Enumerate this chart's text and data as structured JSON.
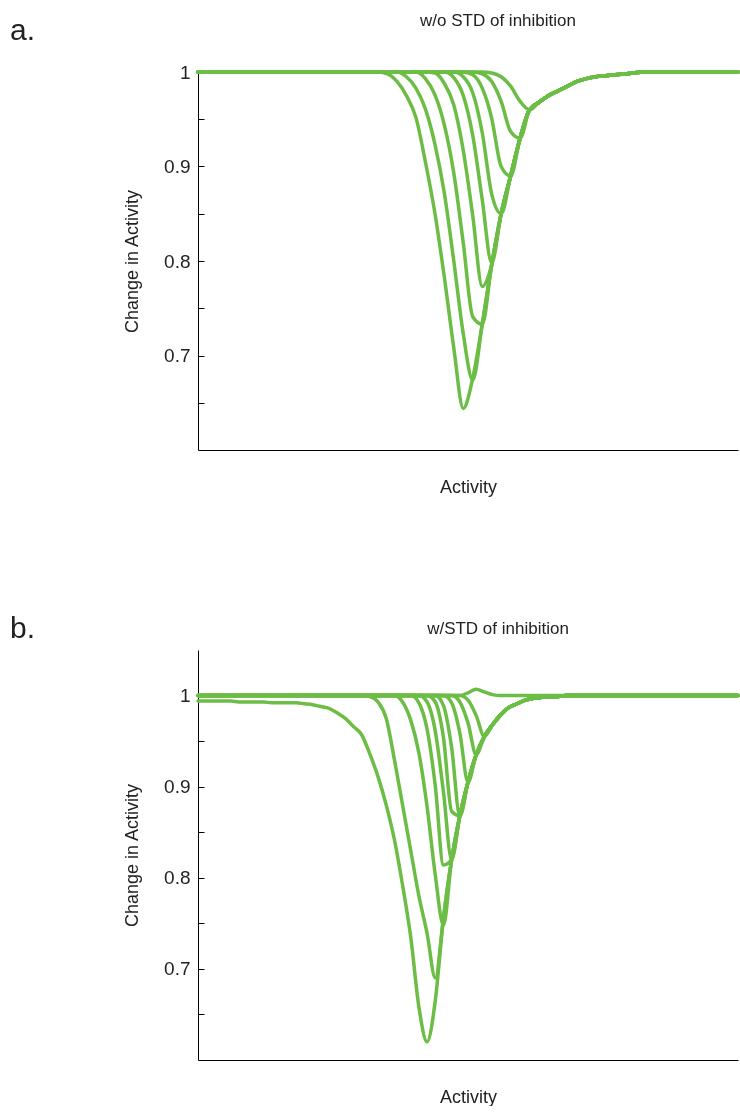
{
  "chart_data": [
    {
      "type": "line",
      "title": "w/o STD of inhibition",
      "xlabel": "Activity",
      "ylabel": "Change in Activity",
      "annotations": [
        "a."
      ],
      "tick_labels": "y",
      "ylim": [
        0.6,
        1
      ],
      "yticks": [
        {
          "value": 0.65,
          "label": null
        },
        0.7,
        {
          "value": 0.75,
          "label": null
        },
        0.8,
        {
          "value": 0.85,
          "label": null
        },
        0.9,
        {
          "value": 0.95,
          "label": null
        },
        1
      ],
      "categories": [
        null,
        null,
        null,
        null,
        null,
        null,
        null,
        null,
        null,
        null,
        null,
        null,
        null,
        null,
        null,
        null,
        null,
        null,
        null,
        null,
        null,
        null,
        null,
        null,
        null,
        null,
        null,
        null,
        null,
        null,
        null,
        null,
        null,
        null,
        null,
        null,
        null,
        null,
        null,
        null,
        null,
        null,
        null,
        null,
        null,
        null,
        null,
        null,
        null,
        null,
        null,
        null,
        null,
        null,
        null,
        null,
        null,
        null
      ],
      "series": [
        {
          "color": "#6cbd45",
          "values": [
            1,
            1,
            1,
            1,
            1,
            1,
            1,
            1,
            1,
            1,
            1,
            1,
            1,
            1,
            1,
            1,
            1,
            1,
            1,
            1,
            0.998,
            0.99,
            0.975,
            0.952,
            0.905,
            0.851,
            0.783,
            0.708,
            0.644,
            0.676,
            0.733,
            0.796,
            0.85,
            0.89,
            0.93,
            0.96,
            0.968,
            0.975,
            0.98,
            0.985,
            0.99,
            0.993,
            0.995,
            0.996,
            0.997,
            0.998,
            0.999,
            1,
            1,
            1,
            1,
            1,
            1,
            1,
            1,
            1,
            1,
            1
          ]
        },
        {
          "color": "#6cbd45",
          "values": [
            1,
            1,
            1,
            1,
            1,
            1,
            1,
            1,
            1,
            1,
            1,
            1,
            1,
            1,
            1,
            1,
            1,
            1,
            1,
            1,
            1,
            1,
            0.995,
            0.983,
            0.961,
            0.924,
            0.872,
            0.8,
            0.723,
            0.674,
            0.733,
            0.796,
            0.85,
            0.89,
            0.93,
            0.96,
            0.968,
            0.975,
            0.98,
            0.985,
            0.99,
            0.993,
            0.995,
            0.996,
            0.997,
            0.998,
            0.999,
            1,
            1,
            1,
            1,
            1,
            1,
            1,
            1,
            1,
            1,
            1
          ]
        },
        {
          "color": "#6cbd45",
          "values": [
            1,
            1,
            1,
            1,
            1,
            1,
            1,
            1,
            1,
            1,
            1,
            1,
            1,
            1,
            1,
            1,
            1,
            1,
            1,
            1,
            1,
            1,
            1,
            1,
            0.993,
            0.976,
            0.944,
            0.893,
            0.819,
            0.741,
            0.733,
            0.796,
            0.85,
            0.89,
            0.93,
            0.96,
            0.968,
            0.975,
            0.98,
            0.985,
            0.99,
            0.993,
            0.995,
            0.996,
            0.997,
            0.998,
            0.999,
            1,
            1,
            1,
            1,
            1,
            1,
            1,
            1,
            1,
            1,
            1
          ]
        },
        {
          "color": "#6cbd45",
          "values": [
            1,
            1,
            1,
            1,
            1,
            1,
            1,
            1,
            1,
            1,
            1,
            1,
            1,
            1,
            1,
            1,
            1,
            1,
            1,
            1,
            1,
            1,
            1,
            1,
            1,
            0.999,
            0.988,
            0.965,
            0.917,
            0.848,
            0.773,
            0.796,
            0.85,
            0.89,
            0.93,
            0.96,
            0.968,
            0.975,
            0.98,
            0.985,
            0.99,
            0.993,
            0.995,
            0.996,
            0.997,
            0.998,
            0.999,
            1,
            1,
            1,
            1,
            1,
            1,
            1,
            1,
            1,
            1,
            1
          ]
        },
        {
          "color": "#6cbd45",
          "values": [
            1,
            1,
            1,
            1,
            1,
            1,
            1,
            1,
            1,
            1,
            1,
            1,
            1,
            1,
            1,
            1,
            1,
            1,
            1,
            1,
            1,
            1,
            1,
            1,
            1,
            1,
            1,
            0.994,
            0.975,
            0.933,
            0.865,
            0.798,
            0.85,
            0.89,
            0.93,
            0.96,
            0.968,
            0.975,
            0.98,
            0.985,
            0.99,
            0.993,
            0.995,
            0.996,
            0.997,
            0.998,
            0.999,
            1,
            1,
            1,
            1,
            1,
            1,
            1,
            1,
            1,
            1,
            1
          ]
        },
        {
          "color": "#6cbd45",
          "values": [
            1,
            1,
            1,
            1,
            1,
            1,
            1,
            1,
            1,
            1,
            1,
            1,
            1,
            1,
            1,
            1,
            1,
            1,
            1,
            1,
            1,
            1,
            1,
            1,
            1,
            1,
            1,
            1,
            0.995,
            0.978,
            0.936,
            0.871,
            0.85,
            0.89,
            0.93,
            0.96,
            0.968,
            0.975,
            0.98,
            0.985,
            0.99,
            0.993,
            0.995,
            0.996,
            0.997,
            0.998,
            0.999,
            1,
            1,
            1,
            1,
            1,
            1,
            1,
            1,
            1,
            1,
            1
          ]
        },
        {
          "color": "#6cbd45",
          "values": [
            1,
            1,
            1,
            1,
            1,
            1,
            1,
            1,
            1,
            1,
            1,
            1,
            1,
            1,
            1,
            1,
            1,
            1,
            1,
            1,
            1,
            1,
            1,
            1,
            1,
            1,
            1,
            1,
            1,
            0.997,
            0.983,
            0.951,
            0.9,
            0.89,
            0.93,
            0.96,
            0.968,
            0.975,
            0.98,
            0.985,
            0.99,
            0.993,
            0.995,
            0.996,
            0.997,
            0.998,
            0.999,
            1,
            1,
            1,
            1,
            1,
            1,
            1,
            1,
            1,
            1,
            1
          ]
        },
        {
          "color": "#6cbd45",
          "values": [
            1,
            1,
            1,
            1,
            1,
            1,
            1,
            1,
            1,
            1,
            1,
            1,
            1,
            1,
            1,
            1,
            1,
            1,
            1,
            1,
            1,
            1,
            1,
            1,
            1,
            1,
            1,
            1,
            1,
            1,
            0.998,
            0.99,
            0.969,
            0.937,
            0.93,
            0.96,
            0.968,
            0.975,
            0.98,
            0.985,
            0.99,
            0.993,
            0.995,
            0.996,
            0.997,
            0.998,
            0.999,
            1,
            1,
            1,
            1,
            1,
            1,
            1,
            1,
            1,
            1,
            1
          ]
        },
        {
          "color": "#6cbd45",
          "values": [
            1,
            1,
            1,
            1,
            1,
            1,
            1,
            1,
            1,
            1,
            1,
            1,
            1,
            1,
            1,
            1,
            1,
            1,
            1,
            1,
            1,
            1,
            1,
            1,
            1,
            1,
            1,
            1,
            1,
            1,
            1,
            0.999,
            0.995,
            0.985,
            0.969,
            0.96,
            0.968,
            0.975,
            0.98,
            0.985,
            0.99,
            0.993,
            0.995,
            0.996,
            0.997,
            0.998,
            0.999,
            1,
            1,
            1,
            1,
            1,
            1,
            1,
            1,
            1,
            1,
            1
          ]
        }
      ]
    },
    {
      "type": "line",
      "title": "w/STD of inhibition",
      "xlabel": "Activity",
      "ylabel": "Change in Activity",
      "annotations": [
        "b."
      ],
      "tick_labels": "y",
      "ylim": [
        0.6,
        1.05
      ],
      "yticks": [
        {
          "value": 0.65,
          "label": null
        },
        0.7,
        {
          "value": 0.75,
          "label": null
        },
        0.8,
        {
          "value": 0.85,
          "label": null
        },
        0.9,
        {
          "value": 0.95,
          "label": null
        },
        1
      ],
      "categories": [
        null,
        null,
        null,
        null,
        null,
        null,
        null,
        null,
        null,
        null,
        null,
        null,
        null,
        null,
        null,
        null,
        null,
        null,
        null,
        null,
        null,
        null,
        null,
        null,
        null,
        null,
        null,
        null,
        null,
        null,
        null,
        null,
        null,
        null,
        null,
        null,
        null,
        null,
        null,
        null,
        null,
        null,
        null,
        null,
        null,
        null,
        null,
        null,
        null,
        null,
        null,
        null,
        null,
        null,
        null,
        null,
        null,
        null,
        null,
        null,
        null,
        null,
        null,
        null,
        null,
        null,
        null
      ],
      "series": [
        {
          "color": "#6cbd45",
          "values": [
            0.994,
            0.994,
            0.994,
            0.994,
            0.994,
            0.993,
            0.993,
            0.993,
            0.993,
            0.992,
            0.992,
            0.992,
            0.992,
            0.991,
            0.99,
            0.988,
            0.986,
            0.981,
            0.975,
            0.966,
            0.957,
            0.936,
            0.911,
            0.88,
            0.842,
            0.792,
            0.735,
            0.658,
            0.62,
            0.665,
            0.756,
            0.82,
            0.868,
            0.905,
            0.935,
            0.955,
            0.968,
            0.979,
            0.987,
            0.991,
            0.995,
            0.997,
            0.998,
            0.999,
            0.999,
            1,
            1,
            1,
            1,
            1,
            1,
            1,
            1,
            1,
            1,
            1,
            1,
            1,
            1,
            1,
            1,
            1,
            1,
            1,
            1,
            1,
            1
          ]
        },
        {
          "color": "#6cbd45",
          "values": [
            1,
            1,
            1,
            1,
            1,
            1,
            1,
            1,
            1,
            1,
            1,
            1,
            1,
            1,
            1,
            1,
            1,
            1,
            1,
            1,
            1,
            0.999,
            0.993,
            0.975,
            0.93,
            0.88,
            0.83,
            0.78,
            0.739,
            0.69,
            0.756,
            0.82,
            0.868,
            0.905,
            0.935,
            0.955,
            0.968,
            0.979,
            0.987,
            0.991,
            0.995,
            0.997,
            0.998,
            0.999,
            0.999,
            1,
            1,
            1,
            1,
            1,
            1,
            1,
            1,
            1,
            1,
            1,
            1,
            1,
            1,
            1,
            1,
            1,
            1,
            1,
            1,
            1,
            1
          ]
        },
        {
          "color": "#6cbd45",
          "values": [
            1,
            1,
            1,
            1,
            1,
            1,
            1,
            1,
            1,
            1,
            1,
            1,
            1,
            1,
            1,
            1,
            1,
            1,
            1,
            1,
            1,
            1,
            1,
            1,
            1,
            0.993,
            0.973,
            0.937,
            0.878,
            0.803,
            0.748,
            0.82,
            0.868,
            0.905,
            0.935,
            0.955,
            0.968,
            0.979,
            0.987,
            0.991,
            0.995,
            0.997,
            0.998,
            0.999,
            0.999,
            1,
            1,
            1,
            1,
            1,
            1,
            1,
            1,
            1,
            1,
            1,
            1,
            1,
            1,
            1,
            1,
            1,
            1,
            1,
            1,
            1,
            1
          ]
        },
        {
          "color": "#6cbd45",
          "values": [
            1,
            1,
            1,
            1,
            1,
            1,
            1,
            1,
            1,
            1,
            1,
            1,
            1,
            1,
            1,
            1,
            1,
            1,
            1,
            1,
            1,
            1,
            1,
            1,
            1,
            1,
            1,
            0.992,
            0.963,
            0.901,
            0.814,
            0.82,
            0.868,
            0.905,
            0.935,
            0.955,
            0.968,
            0.979,
            0.987,
            0.991,
            0.995,
            0.997,
            0.998,
            0.999,
            0.999,
            1,
            1,
            1,
            1,
            1,
            1,
            1,
            1,
            1,
            1,
            1,
            1,
            1,
            1,
            1,
            1,
            1,
            1,
            1,
            1,
            1,
            1
          ]
        },
        {
          "color": "#6cbd45",
          "values": [
            1,
            1,
            1,
            1,
            1,
            1,
            1,
            1,
            1,
            1,
            1,
            1,
            1,
            1,
            1,
            1,
            1,
            1,
            1,
            1,
            1,
            1,
            1,
            1,
            1,
            1,
            1,
            1,
            0.993,
            0.961,
            0.894,
            0.82,
            0.868,
            0.905,
            0.935,
            0.955,
            0.968,
            0.979,
            0.987,
            0.991,
            0.995,
            0.997,
            0.998,
            0.999,
            0.999,
            1,
            1,
            1,
            1,
            1,
            1,
            1,
            1,
            1,
            1,
            1,
            1,
            1,
            1,
            1,
            1,
            1,
            1,
            1,
            1,
            1,
            1
          ]
        },
        {
          "color": "#6cbd45",
          "values": [
            1,
            1,
            1,
            1,
            1,
            1,
            1,
            1,
            1,
            1,
            1,
            1,
            1,
            1,
            1,
            1,
            1,
            1,
            1,
            1,
            1,
            1,
            1,
            1,
            1,
            1,
            1,
            1,
            1,
            0.993,
            0.954,
            0.873,
            0.868,
            0.905,
            0.935,
            0.955,
            0.968,
            0.979,
            0.987,
            0.991,
            0.995,
            0.997,
            0.998,
            0.999,
            0.999,
            1,
            1,
            1,
            1,
            1,
            1,
            1,
            1,
            1,
            1,
            1,
            1,
            1,
            1,
            1,
            1,
            1,
            1,
            1,
            1,
            1,
            1
          ]
        },
        {
          "color": "#6cbd45",
          "values": [
            1,
            1,
            1,
            1,
            1,
            1,
            1,
            1,
            1,
            1,
            1,
            1,
            1,
            1,
            1,
            1,
            1,
            1,
            1,
            1,
            1,
            1,
            1,
            1,
            1,
            1,
            1,
            1,
            1,
            1,
            0.989,
            0.943,
            0.868,
            0.905,
            0.935,
            0.955,
            0.968,
            0.979,
            0.987,
            0.991,
            0.995,
            0.997,
            0.998,
            0.999,
            0.999,
            1,
            1,
            1,
            1,
            1,
            1,
            1,
            1,
            1,
            1,
            1,
            1,
            1,
            1,
            1,
            1,
            1,
            1,
            1,
            1,
            1,
            1
          ]
        },
        {
          "color": "#6cbd45",
          "values": [
            1,
            1,
            1,
            1,
            1,
            1,
            1,
            1,
            1,
            1,
            1,
            1,
            1,
            1,
            1,
            1,
            1,
            1,
            1,
            1,
            1,
            1,
            1,
            1,
            1,
            1,
            1,
            1,
            1,
            1,
            1,
            0.992,
            0.959,
            0.905,
            0.935,
            0.955,
            0.968,
            0.979,
            0.987,
            0.991,
            0.995,
            0.997,
            0.998,
            0.999,
            0.999,
            1,
            1,
            1,
            1,
            1,
            1,
            1,
            1,
            1,
            1,
            1,
            1,
            1,
            1,
            1,
            1,
            1,
            1,
            1,
            1,
            1,
            1
          ]
        },
        {
          "color": "#6cbd45",
          "values": [
            1,
            1,
            1,
            1,
            1,
            1,
            1,
            1,
            1,
            1,
            1,
            1,
            1,
            1,
            1,
            1,
            1,
            1,
            1,
            1,
            1,
            1,
            1,
            1,
            1,
            1,
            1,
            1,
            1,
            1,
            1,
            1,
            0.993,
            0.97,
            0.935,
            0.955,
            0.968,
            0.979,
            0.987,
            0.991,
            0.995,
            0.997,
            0.998,
            0.999,
            0.999,
            1,
            1,
            1,
            1,
            1,
            1,
            1,
            1,
            1,
            1,
            1,
            1,
            1,
            1,
            1,
            1,
            1,
            1,
            1,
            1,
            1,
            1
          ]
        },
        {
          "color": "#6cbd45",
          "values": [
            1,
            1,
            1,
            1,
            1,
            1,
            1,
            1,
            1,
            1,
            1,
            1,
            1,
            1,
            1,
            1,
            1,
            1,
            1,
            1,
            1,
            1,
            1,
            1,
            1,
            1,
            1,
            1,
            1,
            1,
            1,
            1,
            1,
            0.995,
            0.978,
            0.955,
            0.968,
            0.979,
            0.987,
            0.991,
            0.995,
            0.997,
            0.998,
            0.999,
            0.999,
            1,
            1,
            1,
            1,
            1,
            1,
            1,
            1,
            1,
            1,
            1,
            1,
            1,
            1,
            1,
            1,
            1,
            1,
            1,
            1,
            1,
            1
          ]
        },
        {
          "color": "#6cbd45",
          "values": [
            1,
            1,
            1,
            1,
            1,
            1,
            1,
            1,
            1,
            1,
            1,
            1,
            1,
            1,
            1,
            1,
            1,
            1,
            1,
            1,
            1,
            1,
            1,
            1,
            1,
            1,
            1,
            1,
            1,
            1,
            1,
            1,
            1,
            1.003,
            1.007,
            1.004,
            1.001,
            1,
            1,
            1,
            1,
            1,
            1,
            1,
            1,
            1,
            1,
            1,
            1,
            1,
            1,
            1,
            1,
            1,
            1,
            1,
            1,
            1,
            1,
            1,
            1,
            1,
            1,
            1,
            1,
            1,
            1
          ]
        }
      ]
    }
  ]
}
